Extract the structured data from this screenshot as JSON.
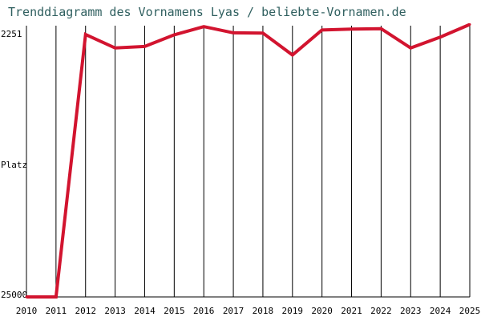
{
  "chart_data": {
    "type": "line",
    "title": "Trenddiagramm des Vornamens Lyas / beliebte-Vornamen.de",
    "ylabel": "Platz",
    "x": [
      "2010",
      "2011",
      "2012",
      "2013",
      "2014",
      "2015",
      "2016",
      "2017",
      "2018",
      "2019",
      "2020",
      "2021",
      "2022",
      "2023",
      "2024",
      "2025"
    ],
    "y_tick_labels": [
      "2251",
      "25000"
    ],
    "ylim": [
      2251,
      25000
    ],
    "y_inverted": true,
    "grid": "vertical",
    "series": [
      {
        "values": [
          25000,
          25000,
          2990,
          4120,
          3990,
          3020,
          2330,
          2850,
          2870,
          4710,
          2610,
          2540,
          2500,
          4120,
          3210,
          2150
        ]
      }
    ],
    "colors": {
      "line": "#d2142f",
      "grid": "#000000",
      "title": "#2f5f5f"
    }
  }
}
